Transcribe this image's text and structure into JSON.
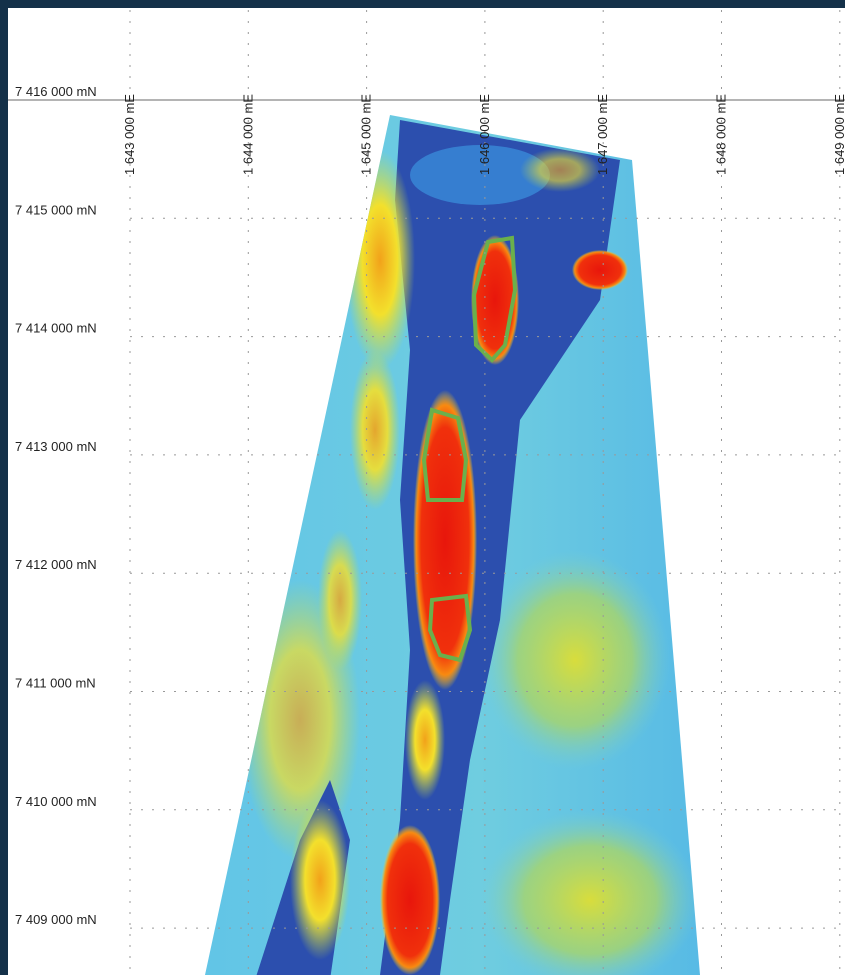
{
  "eastings": [
    "1 643 000 mE",
    "1 644 000 mE",
    "1 645 000 mE",
    "1 646 000 mE",
    "1 647 000 mE",
    "1 648 000 mE",
    "1 649 000 mE"
  ],
  "northings": [
    "7 416 000 mN",
    "7 415 000 mN",
    "7 414 000 mN",
    "7 413 000 mN",
    "7 412 000 mN",
    "7 411 000 mN",
    "7 410 000 mN",
    "7 409 000 mN"
  ]
}
